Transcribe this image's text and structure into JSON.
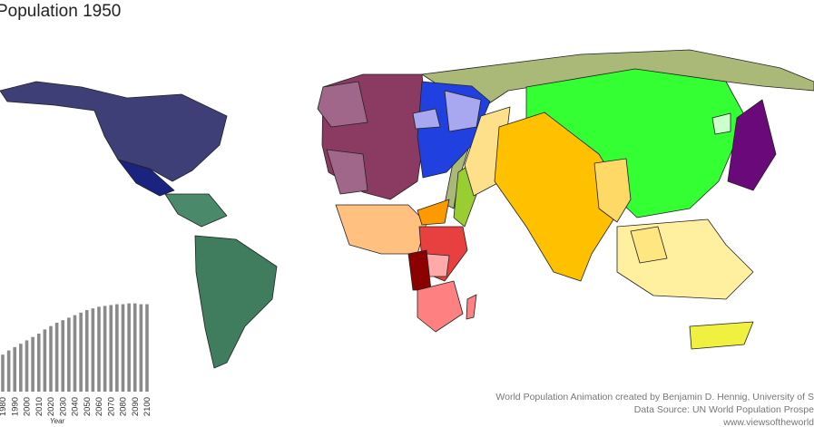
{
  "title": "Population 1950",
  "credits": [
    "World Population Animation created by Benjamin D. Hennig, University of S",
    "Data Source: UN World Population Prospe",
    "www.viewsoftheworld"
  ],
  "chart_data": {
    "type": "bar",
    "xlabel": "Year",
    "color": "#8a8a8a",
    "categories": [
      "1980",
      null,
      "1990",
      null,
      "2000",
      null,
      "2010",
      null,
      "2020",
      null,
      "2030",
      null,
      "2040",
      null,
      "2050",
      null,
      "2060",
      null,
      "2070",
      null,
      "2080",
      null,
      "2090",
      null,
      "2100"
    ],
    "values": [
      4.4,
      4.9,
      5.3,
      5.7,
      6.1,
      6.5,
      6.9,
      7.4,
      7.8,
      8.2,
      8.5,
      8.8,
      9.1,
      9.4,
      9.7,
      9.9,
      10.1,
      10.2,
      10.3,
      10.4,
      10.4,
      10.5,
      10.5,
      10.4,
      10.4
    ],
    "ylim": [
      0,
      11
    ]
  }
}
